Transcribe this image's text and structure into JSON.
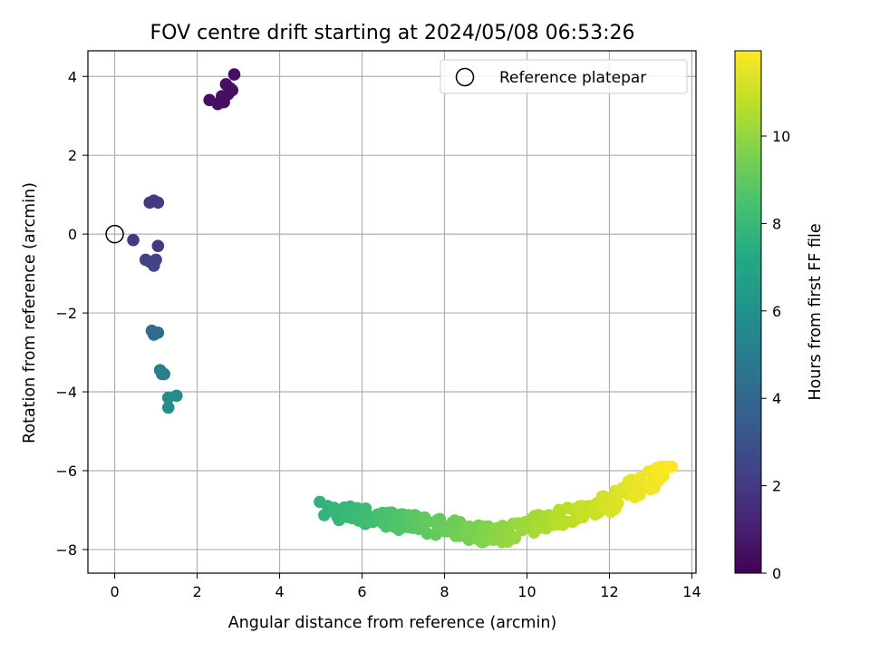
{
  "chart_data": {
    "type": "scatter",
    "title": "FOV centre drift starting at 2024/05/08 06:53:26",
    "xlabel": "Angular distance from reference (arcmin)",
    "ylabel": "Rotation from reference (arcmin)",
    "xlim": [
      -0.65,
      14.1
    ],
    "ylim": [
      -8.6,
      4.65
    ],
    "xticks": [
      0,
      2,
      4,
      6,
      8,
      10,
      12,
      14
    ],
    "yticks": [
      -8,
      -6,
      -4,
      -2,
      0,
      2,
      4
    ],
    "grid": true,
    "legend": {
      "location": "top-right",
      "entries": [
        "Reference platepar"
      ]
    },
    "reference_point": {
      "x": 0,
      "y": 0,
      "label": "Reference platepar"
    },
    "colorbar": {
      "label": "Hours from first FF file",
      "range": [
        0,
        11.95
      ],
      "ticks": [
        0,
        2,
        4,
        6,
        8,
        10
      ],
      "colormap": "viridis"
    },
    "clusters": [
      {
        "hours": 0.5,
        "points": [
          [
            2.3,
            3.4
          ],
          [
            2.5,
            3.3
          ],
          [
            2.6,
            3.5
          ],
          [
            2.7,
            3.8
          ],
          [
            2.8,
            3.7
          ],
          [
            2.9,
            4.05
          ],
          [
            2.65,
            3.35
          ],
          [
            2.85,
            3.65
          ],
          [
            2.75,
            3.55
          ]
        ]
      },
      {
        "hours": 2.0,
        "points": [
          [
            0.85,
            0.8
          ],
          [
            0.95,
            0.85
          ],
          [
            1.05,
            0.8
          ],
          [
            0.45,
            -0.15
          ],
          [
            1.05,
            -0.3
          ]
        ]
      },
      {
        "hours": 2.3,
        "points": [
          [
            0.75,
            -0.65
          ],
          [
            0.85,
            -0.7
          ],
          [
            0.95,
            -0.8
          ],
          [
            1.0,
            -0.65
          ]
        ]
      },
      {
        "hours": 4.2,
        "points": [
          [
            0.9,
            -2.45
          ],
          [
            0.95,
            -2.55
          ],
          [
            1.05,
            -2.5
          ]
        ]
      },
      {
        "hours": 5.2,
        "points": [
          [
            1.1,
            -3.45
          ],
          [
            1.15,
            -3.55
          ],
          [
            1.2,
            -3.55
          ]
        ]
      },
      {
        "hours": 5.8,
        "points": [
          [
            1.3,
            -4.15
          ],
          [
            1.5,
            -4.1
          ],
          [
            1.3,
            -4.4
          ]
        ]
      }
    ],
    "drift_band": {
      "x_start": 5.1,
      "x_end": 13.45,
      "hours_start": 7.7,
      "hours_end": 11.95,
      "y_min": -8.0,
      "y_max": -5.9
    }
  }
}
